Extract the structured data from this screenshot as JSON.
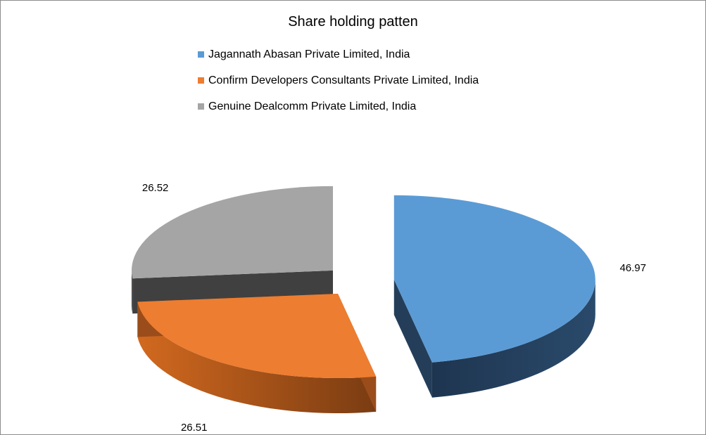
{
  "chart_data": {
    "type": "pie",
    "title": "Share holding patten",
    "legend_position": "top",
    "categories": [
      "Jagannath Abasan Private Limited, India",
      "Confirm Developers Consultants Private Limited, India",
      "Genuine Dealcomm Private Limited, India"
    ],
    "values": [
      46.97,
      26.51,
      26.52
    ],
    "data_labels": [
      "46.97",
      "26.51",
      "26.52"
    ],
    "colors": [
      "#5b9bd5",
      "#ed7d31",
      "#a5a5a5"
    ],
    "side_colors": [
      "#243e5a",
      "#9a4d1a",
      "#404040"
    ],
    "style": "3d-exploded"
  }
}
